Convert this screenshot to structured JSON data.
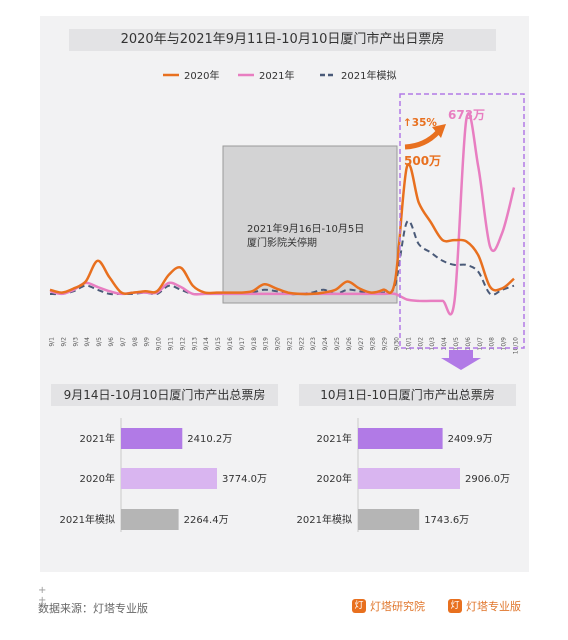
{
  "colors": {
    "c2020": "#e8701f",
    "c2021": "#e87ec1",
    "cSim": "#4a5a78",
    "bar2021": "#b17ae6",
    "bar2020": "#d9b5f0",
    "barSim": "#b5b5b5",
    "highlight": "#b17ae6"
  },
  "chart_data": [
    {
      "type": "line",
      "title": "2020年与2021年9月11日-10月10日厦门市产出日票房",
      "x": [
        "9/1",
        "9/2",
        "9/3",
        "9/4",
        "9/5",
        "9/6",
        "9/7",
        "9/8",
        "9/9",
        "9/10",
        "9/11",
        "9/12",
        "9/13",
        "9/14",
        "9/15",
        "9/16",
        "9/17",
        "9/18",
        "9/19",
        "9/20",
        "9/21",
        "9/22",
        "9/23",
        "9/24",
        "9/25",
        "9/26",
        "9/27",
        "9/28",
        "9/29",
        "9/30",
        "10/1",
        "10/2",
        "10/3",
        "10/4",
        "10/5",
        "10/6",
        "10/7",
        "10/8",
        "10/9",
        "10/10"
      ],
      "series": [
        {
          "name": "2020年",
          "values": [
            55,
            45,
            60,
            85,
            160,
            100,
            45,
            45,
            50,
            50,
            110,
            135,
            70,
            45,
            45,
            45,
            45,
            50,
            75,
            60,
            45,
            40,
            40,
            45,
            55,
            85,
            60,
            45,
            55,
            85,
            500,
            370,
            300,
            235,
            235,
            230,
            180,
            65,
            60,
            95
          ]
        },
        {
          "name": "2021年",
          "values": [
            50,
            40,
            55,
            80,
            65,
            50,
            40,
            45,
            45,
            45,
            80,
            65,
            40,
            40,
            40,
            40,
            40,
            40,
            40,
            40,
            40,
            40,
            40,
            40,
            40,
            40,
            40,
            40,
            40,
            40,
            20,
            15,
            15,
            15,
            15,
            673,
            500,
            210,
            260,
            425
          ]
        },
        {
          "name": "2021年模拟",
          "values": [
            40,
            40,
            50,
            70,
            55,
            40,
            40,
            40,
            45,
            40,
            70,
            55,
            40,
            40,
            40,
            40,
            40,
            45,
            55,
            50,
            40,
            40,
            45,
            55,
            40,
            55,
            50,
            40,
            45,
            70,
            300,
            220,
            190,
            160,
            145,
            145,
            120,
            40,
            55,
            70
          ]
        }
      ],
      "annotations": {
        "closure": "2021年9月16日-10月5日\n厦门影院关停期",
        "growth": "↑35%",
        "peak2020": "500万",
        "peak2021": "673万"
      }
    },
    {
      "type": "bar",
      "title": "9月14日-10月10日厦门市产出总票房",
      "categories": [
        "2021年",
        "2020年",
        "2021年模拟"
      ],
      "values": [
        2410.2,
        3774.0,
        2264.4
      ],
      "labels": [
        "2410.2万",
        "3774.0万",
        "2264.4万"
      ]
    },
    {
      "type": "bar",
      "title": "10月1日-10日厦门市产出总票房",
      "categories": [
        "2021年",
        "2020年",
        "2021年模拟"
      ],
      "values": [
        2409.9,
        2906.0,
        1743.6
      ],
      "labels": [
        "2409.9万",
        "2906.0万",
        "1743.6万"
      ]
    }
  ],
  "footer": {
    "plus": "+ +\n+",
    "source": "数据来源：灯塔专业版",
    "logo1": "灯塔研究院",
    "logo2": "灯塔专业版"
  }
}
